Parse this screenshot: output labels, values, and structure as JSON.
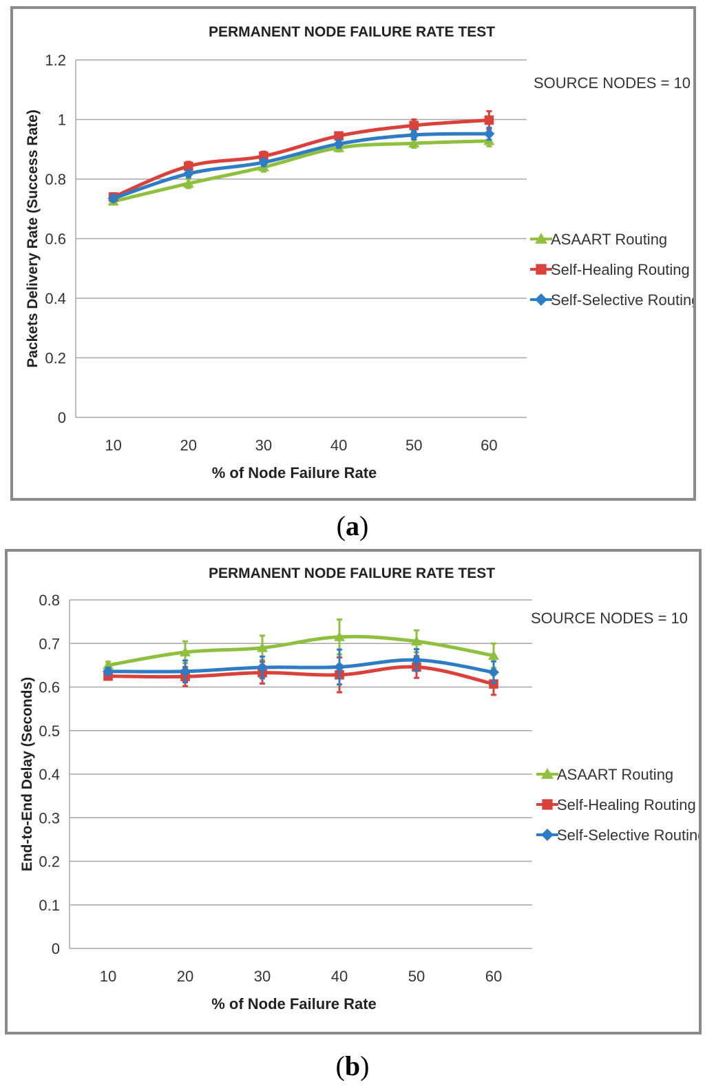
{
  "captions": {
    "a_letter": "a",
    "b_letter": "b"
  },
  "colors": {
    "asaart": "#8fbf3f",
    "healing": "#d9413b",
    "selective": "#2e7cc4",
    "grid": "#a6a6a6",
    "border": "#8a8a8a"
  },
  "chart_data": [
    {
      "type": "line",
      "title": "PERMANENT NODE FAILURE RATE TEST",
      "annotation": "SOURCE NODES = 10",
      "xlabel": "% of Node Failure Rate",
      "ylabel": "Packets Delivery Rate (Success Rate)",
      "categories": [
        "10",
        "20",
        "30",
        "40",
        "50",
        "60"
      ],
      "ylim": [
        0,
        1.2
      ],
      "yticks": [
        "0",
        "0.2",
        "0.4",
        "0.6",
        "0.8",
        "1",
        "1.2"
      ],
      "grid": true,
      "legend": "right",
      "series": [
        {
          "name": "ASAART Routing",
          "values": [
            0.725,
            0.785,
            0.84,
            0.905,
            0.92,
            0.928
          ],
          "error": [
            0.01,
            0.015,
            0.015,
            0.012,
            0.015,
            0.018
          ],
          "marker": "triangle",
          "color": "#8fbf3f"
        },
        {
          "name": "Self-Healing Routing",
          "values": [
            0.74,
            0.843,
            0.877,
            0.945,
            0.98,
            0.998
          ],
          "error": [
            0.012,
            0.015,
            0.015,
            0.012,
            0.02,
            0.03
          ],
          "marker": "square",
          "color": "#d9413b"
        },
        {
          "name": "Self-Selective Routing",
          "values": [
            0.735,
            0.818,
            0.856,
            0.918,
            0.948,
            0.952
          ],
          "error": [
            0.01,
            0.012,
            0.012,
            0.012,
            0.015,
            0.02
          ],
          "marker": "diamond",
          "color": "#2e7cc4"
        }
      ]
    },
    {
      "type": "line",
      "title": "PERMANENT NODE FAILURE RATE TEST",
      "annotation": "SOURCE NODES = 10",
      "xlabel": "% of Node Failure Rate",
      "ylabel": "End-to-End Delay (Seconds)",
      "categories": [
        "10",
        "20",
        "30",
        "40",
        "50",
        "60"
      ],
      "ylim": [
        0,
        0.8
      ],
      "yticks": [
        "0",
        "0.1",
        "0.2",
        "0.3",
        "0.4",
        "0.5",
        "0.6",
        "0.7",
        "0.8"
      ],
      "grid": true,
      "legend": "right",
      "series": [
        {
          "name": "ASAART Routing",
          "values": [
            0.65,
            0.68,
            0.69,
            0.715,
            0.705,
            0.672
          ],
          "error": [
            0.008,
            0.025,
            0.028,
            0.04,
            0.025,
            0.028
          ],
          "marker": "triangle",
          "color": "#8fbf3f"
        },
        {
          "name": "Self-Healing Routing",
          "values": [
            0.625,
            0.624,
            0.633,
            0.628,
            0.646,
            0.607
          ],
          "error": [
            0.008,
            0.022,
            0.025,
            0.04,
            0.025,
            0.025
          ],
          "marker": "square",
          "color": "#d9413b"
        },
        {
          "name": "Self-Selective Routing",
          "values": [
            0.636,
            0.636,
            0.645,
            0.646,
            0.662,
            0.634
          ],
          "error": [
            0.008,
            0.025,
            0.025,
            0.04,
            0.025,
            0.025
          ],
          "marker": "diamond",
          "color": "#2e7cc4"
        }
      ]
    }
  ]
}
